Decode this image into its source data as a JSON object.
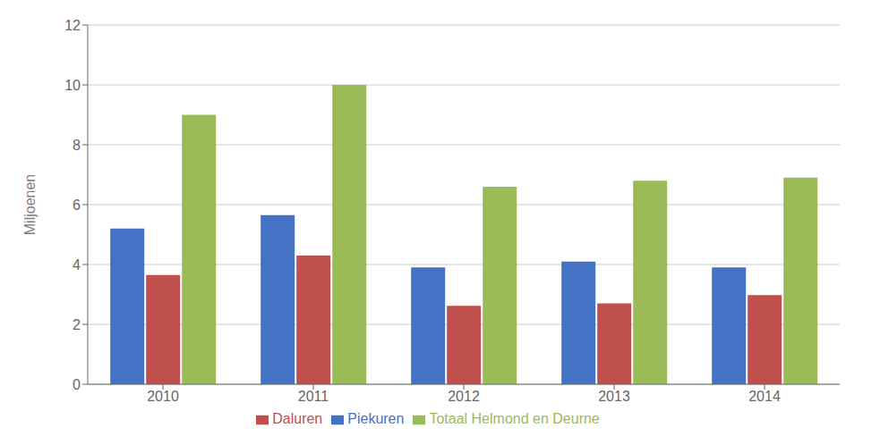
{
  "chart_data": {
    "type": "bar",
    "categories": [
      "2010",
      "2011",
      "2012",
      "2013",
      "2014"
    ],
    "series": [
      {
        "name": "Piekuren",
        "color": "#4472C4",
        "values": [
          5.2,
          5.65,
          3.9,
          4.1,
          3.9
        ]
      },
      {
        "name": "Daluren",
        "color": "#C0504D",
        "values": [
          3.65,
          4.3,
          2.62,
          2.7,
          2.98
        ]
      },
      {
        "name": "Totaal Helmond en Deurne",
        "color": "#9BBB59",
        "values": [
          9.0,
          10.0,
          6.6,
          6.8,
          6.9
        ]
      }
    ],
    "ylabel": "Miljoenen",
    "ylim": [
      0,
      12
    ],
    "yticks": [
      0,
      2,
      4,
      6,
      8,
      10,
      12
    ],
    "grid": true,
    "legend": "bottom"
  }
}
